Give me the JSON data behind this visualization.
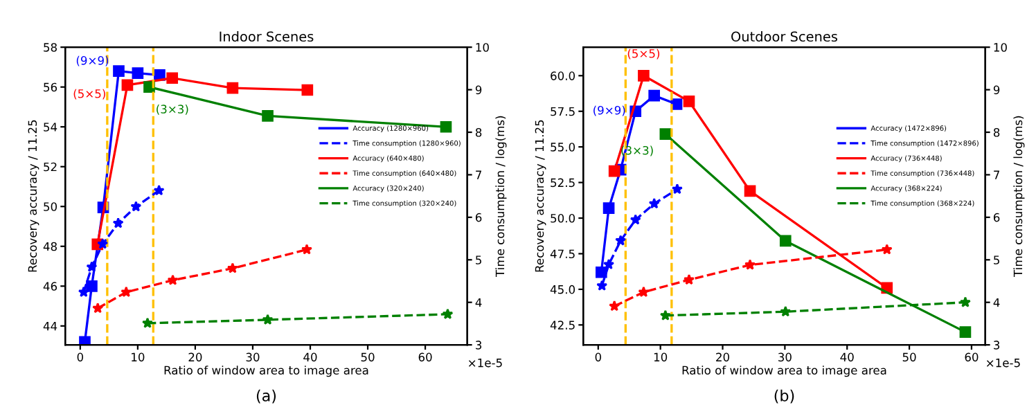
{
  "chart_data": [
    {
      "type": "line",
      "title": "Indoor Scenes",
      "xlabel": "Ratio of window area to image area",
      "ylabel": "Recovery accuracy / 11.25",
      "y2label": "Time consumption / log(ms)",
      "xlim": [
        -2.6,
        67.3
      ],
      "xticks": [
        0,
        10,
        20,
        30,
        40,
        50,
        60
      ],
      "ylim": [
        43.05,
        58
      ],
      "yticks": [
        44,
        46,
        48,
        50,
        52,
        54,
        56,
        58
      ],
      "y2lim": [
        3,
        10
      ],
      "y2ticks": [
        3,
        4,
        5,
        6,
        7,
        8,
        9,
        10
      ],
      "legend": "center right",
      "grid": false,
      "series": [
        {
          "name": "Accuracy (1280×960)",
          "color": "#0000ff",
          "marker": "square",
          "line_style": "solid",
          "x": [
            0.8,
            2,
            4,
            6.7,
            10,
            13.8
          ],
          "values": [
            43.2,
            46,
            49.95,
            56.8,
            56.7,
            56.6
          ]
        },
        {
          "name": "Time consumption (1280×960)",
          "color": "#0000ff",
          "marker": "star",
          "line_style": "dashed",
          "axis": "y2",
          "x": [
            0.6,
            2.0,
            3.9,
            6.6,
            9.7,
            13.7
          ],
          "values": [
            4.24,
            4.83,
            5.37,
            5.86,
            6.25,
            6.63
          ]
        },
        {
          "name": "Accuracy (640×480)",
          "color": "#ff0000",
          "marker": "square",
          "line_style": "solid",
          "x": [
            3,
            8.2,
            16,
            26.5,
            39.5
          ],
          "values": [
            48.1,
            56.1,
            56.45,
            55.95,
            55.85
          ]
        },
        {
          "name": "Time consumption (640×480)",
          "color": "#ff0000",
          "marker": "star",
          "line_style": "dashed",
          "axis": "y2",
          "x": [
            3.05,
            8.0,
            16.1,
            26.5,
            39.4
          ],
          "values": [
            3.86,
            4.24,
            4.52,
            4.8,
            5.24
          ]
        },
        {
          "name": "Accuracy (320×240)",
          "color": "#008000",
          "marker": "square",
          "line_style": "solid",
          "x": [
            12,
            32.6,
            63.6
          ],
          "values": [
            56,
            54.55,
            54.0
          ]
        },
        {
          "name": "Time consumption (320×240)",
          "color": "#008000",
          "marker": "star",
          "line_style": "dashed",
          "axis": "y2",
          "x": [
            11.7,
            32.6,
            63.9
          ],
          "values": [
            3.51,
            3.59,
            3.72
          ]
        }
      ],
      "ref_lines": [
        {
          "axis": "x",
          "value": 4.7,
          "color": "#ffc000",
          "line_style": "dashed"
        },
        {
          "axis": "x",
          "value": 12.7,
          "color": "#ffc000",
          "line_style": "dashed"
        }
      ],
      "annotations": [
        {
          "text": "(9×9)",
          "x": 6.7,
          "y": 56.8
        },
        {
          "text": "(5×5)",
          "x": 8.2,
          "y": 56.1
        },
        {
          "text": "(3×3)",
          "x": 12,
          "y": 56
        },
        "×1e-5",
        "(a)"
      ]
    },
    {
      "type": "line",
      "title": "Outdoor Scenes",
      "xlabel": "Ratio of window area to image area",
      "ylabel": "Recovery accuracy / 11.25",
      "y2label": "Time consumption / log(ms)",
      "xlim": [
        -2.4,
        62.2
      ],
      "xticks": [
        0,
        10,
        20,
        30,
        40,
        50,
        60
      ],
      "ylim": [
        41.1,
        62.0
      ],
      "yticks": [
        {
          "value": 42.5,
          "label": "42.5"
        },
        {
          "value": 45,
          "label": "45.0"
        },
        {
          "value": 47.5,
          "label": "47.5"
        },
        {
          "value": 50,
          "label": "50.0"
        },
        {
          "value": 52.5,
          "label": "52.5"
        },
        {
          "value": 55,
          "label": "55.0"
        },
        {
          "value": 57.5,
          "label": "57.5"
        },
        {
          "value": 60,
          "label": "60.0"
        }
      ],
      "y2lim": [
        3,
        10
      ],
      "y2ticks": [
        3,
        4,
        5,
        6,
        7,
        8,
        9,
        10
      ],
      "legend": "center right",
      "grid": false,
      "series": [
        {
          "name": "Accuracy (1472×896)",
          "color": "#0000ff",
          "marker": "square",
          "line_style": "solid",
          "x": [
            0.5,
            1.7,
            3.6,
            6.0,
            9.0,
            12.6
          ],
          "values": [
            46.2,
            50.7,
            53.4,
            57.5,
            58.6,
            58.0
          ]
        },
        {
          "name": "Time consumption (1472×896)",
          "color": "#0000ff",
          "marker": "star",
          "line_style": "dashed",
          "axis": "y2",
          "x": [
            0.6,
            1.7,
            3.6,
            6.0,
            9.0,
            12.7
          ],
          "values": [
            4.39,
            4.89,
            5.45,
            5.94,
            6.32,
            6.66
          ]
        },
        {
          "name": "Accuracy (736×448)",
          "color": "#ff0000",
          "marker": "square",
          "line_style": "solid",
          "x": [
            2.6,
            7.3,
            14.6,
            24.4,
            46.4
          ],
          "values": [
            53.3,
            60.0,
            58.2,
            51.9,
            45.1
          ]
        },
        {
          "name": "Time consumption (736×448)",
          "color": "#ff0000",
          "marker": "star",
          "line_style": "dashed",
          "axis": "y2",
          "x": [
            2.6,
            7.3,
            14.6,
            24.4,
            46.4
          ],
          "values": [
            3.91,
            4.24,
            4.53,
            4.88,
            5.24
          ]
        },
        {
          "name": "Accuracy (368×224)",
          "color": "#008000",
          "marker": "square",
          "line_style": "solid",
          "x": [
            10.8,
            30.1,
            59.0
          ],
          "values": [
            55.9,
            48.4,
            42.0
          ]
        },
        {
          "name": "Time consumption (368×224)",
          "color": "#008000",
          "marker": "star",
          "line_style": "dashed",
          "axis": "y2",
          "x": [
            10.8,
            30.1,
            59.0
          ],
          "values": [
            3.69,
            3.78,
            4.0
          ]
        }
      ],
      "ref_lines": [
        {
          "axis": "x",
          "value": 4.4,
          "color": "#ffc000",
          "line_style": "dashed"
        },
        {
          "axis": "x",
          "value": 11.8,
          "color": "#ffc000",
          "line_style": "dashed"
        }
      ],
      "annotations": [
        {
          "text": "(5×5)",
          "x": 7.3,
          "y": 60.0
        },
        {
          "text": "(9×9)",
          "x": 6.0,
          "y": 57.5
        },
        {
          "text": "(3×3)",
          "x": 10.8,
          "y": 55.9
        },
        "×1e-5",
        "(b)"
      ]
    }
  ]
}
